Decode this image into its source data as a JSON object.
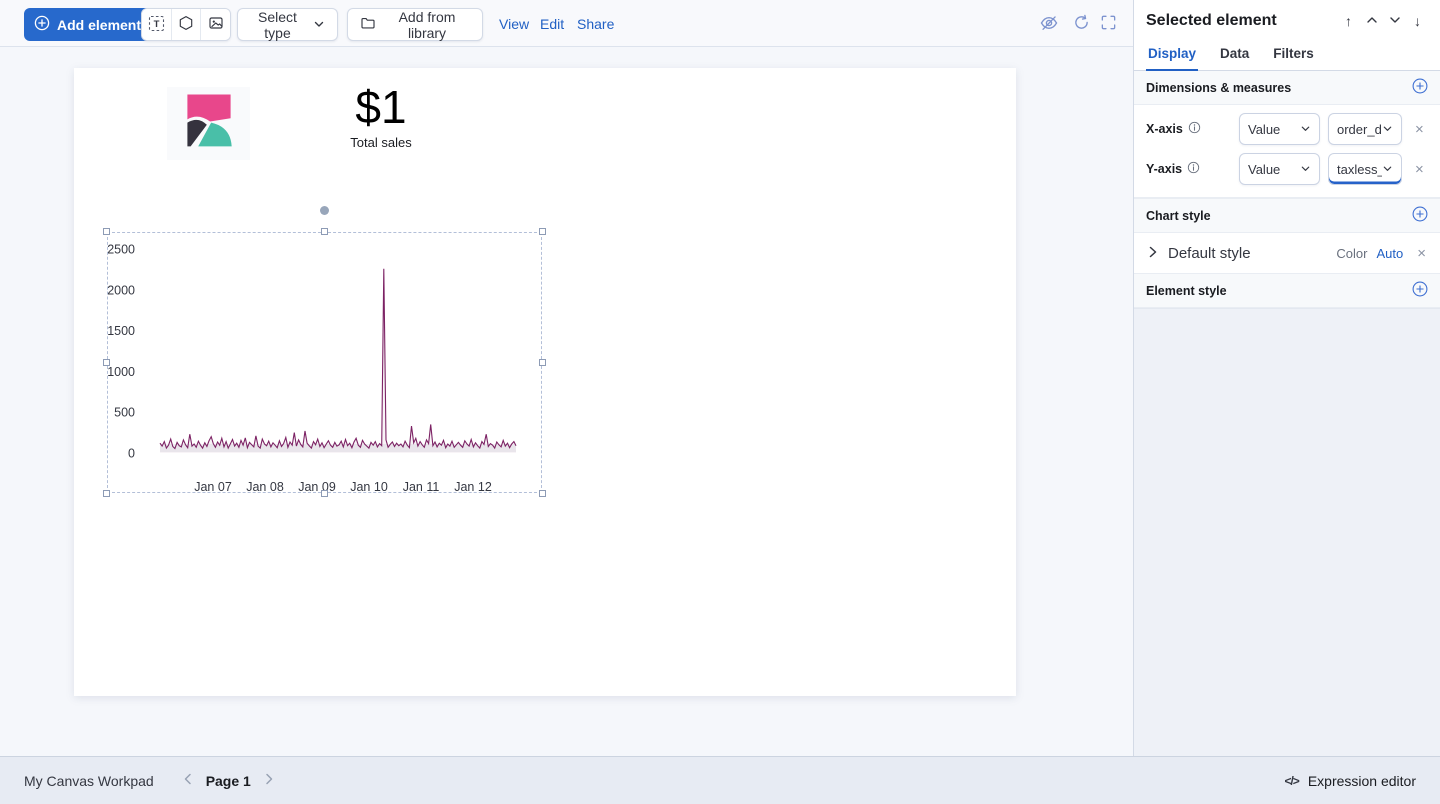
{
  "colors": {
    "primary": "#2769cc",
    "link": "#2160c4"
  },
  "toolbar": {
    "add_element": "Add element",
    "select_type": "Select type",
    "add_from_library": "Add from library",
    "view": "View",
    "edit": "Edit",
    "share": "Share"
  },
  "sidebar": {
    "title": "Selected element",
    "tabs": [
      {
        "label": "Display"
      },
      {
        "label": "Data"
      },
      {
        "label": "Filters"
      }
    ],
    "dimensions": {
      "title": "Dimensions & measures",
      "rows": [
        {
          "label": "X-axis",
          "type": "Value",
          "field": "order_d"
        },
        {
          "label": "Y-axis",
          "type": "Value",
          "field": "taxless_"
        }
      ]
    },
    "chart_style": {
      "title": "Chart style",
      "item": "Default style",
      "color_label": "Color",
      "color_value": "Auto"
    },
    "element_style": {
      "title": "Element style"
    }
  },
  "workpad": {
    "metric_value": "$1",
    "metric_label": "Total sales"
  },
  "chart_data": {
    "type": "line",
    "title": "",
    "x_tick_labels": [
      "Jan 07",
      "Jan 08",
      "Jan 09",
      "Jan 10",
      "Jan 11",
      "Jan 12"
    ],
    "y_ticks": [
      0,
      500,
      1000,
      1500,
      2000,
      2500
    ],
    "ylim": [
      0,
      2500
    ],
    "legend": "off",
    "grid": "off",
    "color": "#7c2264",
    "values": [
      120,
      85,
      140,
      60,
      95,
      170,
      80,
      55,
      130,
      90,
      75,
      160,
      100,
      65,
      230,
      85,
      110,
      70,
      145,
      95,
      60,
      125,
      80,
      150,
      200,
      115,
      70,
      135,
      95,
      180,
      75,
      140,
      60,
      110,
      165,
      85,
      120,
      70,
      155,
      95,
      185,
      65,
      130,
      100,
      75,
      210,
      85,
      60,
      170,
      110,
      90,
      145,
      75,
      125,
      95,
      65,
      150,
      80,
      115,
      190,
      70,
      135,
      95,
      250,
      85,
      160,
      105,
      75,
      270,
      120,
      90,
      60,
      140,
      100,
      170,
      80,
      125,
      65,
      110,
      150,
      95,
      70,
      130,
      85,
      100,
      145,
      75,
      165,
      90,
      120,
      65,
      135,
      180,
      95,
      70,
      155,
      110,
      85,
      60,
      130,
      95,
      140,
      75,
      115,
      90,
      2257,
      160,
      70,
      105,
      135,
      80,
      120,
      90,
      110,
      75,
      145,
      95,
      65,
      330,
      125,
      180,
      85,
      140,
      100,
      70,
      160,
      115,
      350,
      90,
      135,
      75,
      120,
      95,
      155,
      65,
      110,
      85,
      145,
      70,
      100,
      130,
      95,
      70,
      150,
      110,
      85,
      165,
      75,
      125,
      90,
      60,
      140,
      105,
      230,
      80,
      115,
      95,
      60,
      135,
      100,
      75,
      155,
      85,
      120,
      65,
      110,
      140,
      90
    ]
  },
  "footer": {
    "workpad_name": "My Canvas Workpad",
    "page": "Page 1",
    "expression_editor": "Expression editor"
  }
}
